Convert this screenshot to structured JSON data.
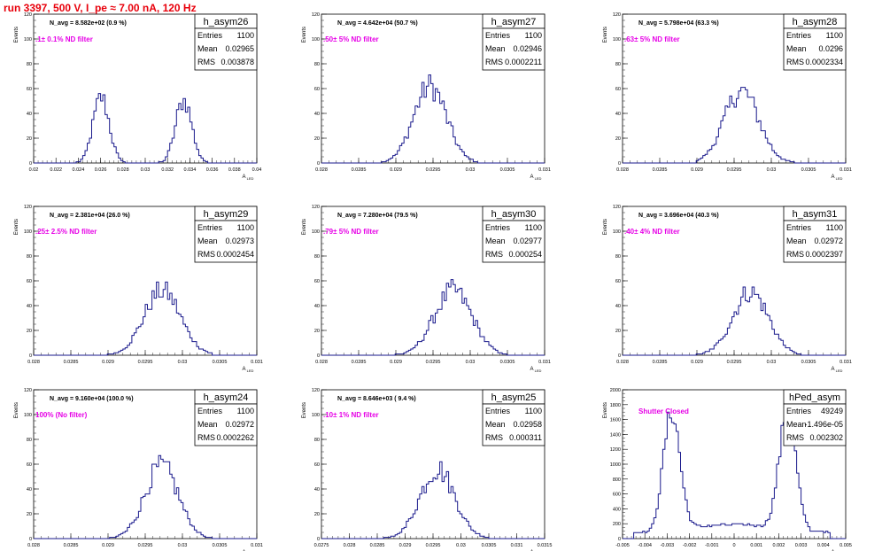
{
  "run_title": "run 3397,   500 V, I_pe ≈ 7.00 nA, 120 Hz",
  "colors": {
    "histogram": "#1a1a8c",
    "filter_label": "#e600e6",
    "title": "#e8000b",
    "frame": "#000000"
  },
  "chart_data": [
    {
      "type": "histogram",
      "name": "h_asym26",
      "ylabel": "Events",
      "xlabel": "A_{LED}",
      "nline": "N_avg = 8.582e+02 (0.9 %)",
      "filter": ".1± 0.1% ND filter",
      "stats": {
        "entries": "1100",
        "mean": "0.02965",
        "rms": "0.003878"
      },
      "xlim": [
        0.02,
        0.04
      ],
      "ylim": [
        0,
        120
      ],
      "xticks": [
        "0.02",
        "0.022",
        "0.024",
        "0.026",
        "0.028",
        "0.03",
        "0.032",
        "0.034",
        "0.036",
        "0.038",
        "0.04"
      ],
      "yticks": [
        "0",
        "20",
        "40",
        "60",
        "80",
        "100",
        "120"
      ],
      "peaks": [
        {
          "center": 0.02605,
          "sigma": 0.00072,
          "height": 53
        },
        {
          "center": 0.03345,
          "sigma": 0.00072,
          "height": 51
        }
      ],
      "xrange_data": [
        0.0238,
        0.0363
      ]
    },
    {
      "type": "histogram",
      "name": "h_asym27",
      "ylabel": "Events",
      "xlabel": "A_{LED}",
      "nline": "N_avg = 4.642e+04 (50.7 %)",
      "filter": ".50± 5% ND filter",
      "stats": {
        "entries": "1100",
        "mean": "0.02946",
        "rms": "0.0002211"
      },
      "xlim": [
        0.028,
        0.031
      ],
      "ylim": [
        0,
        120
      ],
      "xticks": [
        "0.028",
        "0.0285",
        "0.029",
        "0.0295",
        "0.03",
        "0.0305",
        "0.031"
      ],
      "yticks": [
        "0",
        "20",
        "40",
        "60",
        "80",
        "100",
        "120"
      ],
      "peaks": [
        {
          "center": 0.02946,
          "sigma": 0.00022,
          "height": 62
        }
      ],
      "xrange_data": [
        0.0288,
        0.0301
      ]
    },
    {
      "type": "histogram",
      "name": "h_asym28",
      "ylabel": "Events",
      "xlabel": "A_{LED}",
      "nline": "N_avg = 5.798e+04 (63.3 %)",
      "filter": ".63± 5% ND filter",
      "stats": {
        "entries": "1100",
        "mean": "0.0296",
        "rms": "0.0002334"
      },
      "xlim": [
        0.028,
        0.031
      ],
      "ylim": [
        0,
        120
      ],
      "xticks": [
        "0.028",
        "0.0285",
        "0.029",
        "0.0295",
        "0.03",
        "0.0305",
        "0.031"
      ],
      "yticks": [
        "0",
        "20",
        "40",
        "60",
        "80",
        "100",
        "120"
      ],
      "peaks": [
        {
          "center": 0.0296,
          "sigma": 0.000233,
          "height": 58
        }
      ],
      "xrange_data": [
        0.029,
        0.0303
      ]
    },
    {
      "type": "histogram",
      "name": "h_asym29",
      "ylabel": "Events",
      "xlabel": "A_{LED}",
      "nline": "N_avg = 2.381e+04 (26.0 %)",
      "filter": ".25± 2.5% ND filter",
      "stats": {
        "entries": "1100",
        "mean": "0.02973",
        "rms": "0.0002454"
      },
      "xlim": [
        0.028,
        0.031
      ],
      "ylim": [
        0,
        120
      ],
      "xticks": [
        "0.028",
        "0.0285",
        "0.029",
        "0.0295",
        "0.03",
        "0.0305",
        "0.031"
      ],
      "yticks": [
        "0",
        "20",
        "40",
        "60",
        "80",
        "100",
        "120"
      ],
      "peaks": [
        {
          "center": 0.02973,
          "sigma": 0.000245,
          "height": 52
        }
      ],
      "xrange_data": [
        0.0289,
        0.0304
      ]
    },
    {
      "type": "histogram",
      "name": "h_asym30",
      "ylabel": "Events",
      "xlabel": "A_{LED}",
      "nline": "N_avg = 7.280e+04 (79.5 %)",
      "filter": ".79± 5% ND filter",
      "stats": {
        "entries": "1100",
        "mean": "0.02977",
        "rms": "0.000254"
      },
      "xlim": [
        0.028,
        0.031
      ],
      "ylim": [
        0,
        120
      ],
      "xticks": [
        "0.028",
        "0.0285",
        "0.029",
        "0.0295",
        "0.03",
        "0.0305",
        "0.031"
      ],
      "yticks": [
        "0",
        "20",
        "40",
        "60",
        "80",
        "100",
        "120"
      ],
      "peaks": [
        {
          "center": 0.02977,
          "sigma": 0.000254,
          "height": 52
        }
      ],
      "xrange_data": [
        0.029,
        0.0305
      ]
    },
    {
      "type": "histogram",
      "name": "h_asym31",
      "ylabel": "Events",
      "xlabel": "A_{LED}",
      "nline": "N_avg = 3.696e+04 (40.3 %)",
      "filter": ".40± 4% ND filter",
      "stats": {
        "entries": "1100",
        "mean": "0.02972",
        "rms": "0.0002397"
      },
      "xlim": [
        0.028,
        0.031
      ],
      "ylim": [
        0,
        120
      ],
      "xticks": [
        "0.028",
        "0.0285",
        "0.029",
        "0.0295",
        "0.03",
        "0.0305",
        "0.031"
      ],
      "yticks": [
        "0",
        "20",
        "40",
        "60",
        "80",
        "100",
        "120"
      ],
      "peaks": [
        {
          "center": 0.02972,
          "sigma": 0.00024,
          "height": 51
        }
      ],
      "xrange_data": [
        0.029,
        0.0304
      ]
    },
    {
      "type": "histogram",
      "name": "h_asym24",
      "ylabel": "Events",
      "xlabel": "A_{LED}",
      "nline": "N_avg = 9.160e+04 (100.0 %)",
      "filter": "100% (No filter)",
      "stats": {
        "entries": "1100",
        "mean": "0.02972",
        "rms": "0.0002262"
      },
      "xlim": [
        0.028,
        0.031
      ],
      "ylim": [
        0,
        120
      ],
      "xticks": [
        "0.028",
        "0.0285",
        "0.029",
        "0.0295",
        "0.03",
        "0.0305",
        "0.031"
      ],
      "yticks": [
        "0",
        "20",
        "40",
        "60",
        "80",
        "100",
        "120"
      ],
      "peaks": [
        {
          "center": 0.02972,
          "sigma": 0.000226,
          "height": 58
        }
      ],
      "xrange_data": [
        0.029,
        0.0304
      ]
    },
    {
      "type": "histogram",
      "name": "h_asym25",
      "ylabel": "Events",
      "xlabel": "A_{LED}",
      "nline": "N_avg = 8.646e+03 ( 9.4 %)",
      "filter": ".10± 1% ND filter",
      "stats": {
        "entries": "1100",
        "mean": "0.02958",
        "rms": "0.000311"
      },
      "xlim": [
        0.0275,
        0.0315
      ],
      "ylim": [
        0,
        120
      ],
      "xticks": [
        "0.0275",
        "0.028",
        "0.0285",
        "0.029",
        "0.0295",
        "0.03",
        "0.0305",
        "0.031",
        "0.0315"
      ],
      "yticks": [
        "0",
        "20",
        "40",
        "60",
        "80",
        "100",
        "120"
      ],
      "peaks": [
        {
          "center": 0.02958,
          "sigma": 0.00031,
          "height": 56
        }
      ],
      "xrange_data": [
        0.0286,
        0.0305
      ]
    },
    {
      "type": "histogram",
      "name": "hPed_asym",
      "ylabel": "Events",
      "xlabel": "A_{LED}",
      "nline": "",
      "filter": "Shutter Closed",
      "stats": {
        "entries": "49249",
        "mean": "-1.496e-05",
        "rms": "0.002302"
      },
      "xlim": [
        -0.005,
        0.005
      ],
      "ylim": [
        0,
        2000
      ],
      "xticks": [
        "-0.005",
        "-0.004",
        "-0.003",
        "-0.002",
        "-0.001",
        "0",
        "0.001",
        "0.002",
        "0.003",
        "0.004",
        "0.005"
      ],
      "yticks": [
        "0",
        "200",
        "400",
        "600",
        "800",
        "1000",
        "1200",
        "1400",
        "1600",
        "1800",
        "2000"
      ],
      "peaks": [
        {
          "center": -0.0028,
          "sigma": 0.00038,
          "height": 1600
        },
        {
          "center": 0.0024,
          "sigma": 0.00038,
          "height": 1580
        },
        {
          "center": 0.0,
          "sigma": 0.0025,
          "height": 190
        }
      ],
      "xrange_data": [
        -0.0045,
        0.0043
      ]
    }
  ]
}
